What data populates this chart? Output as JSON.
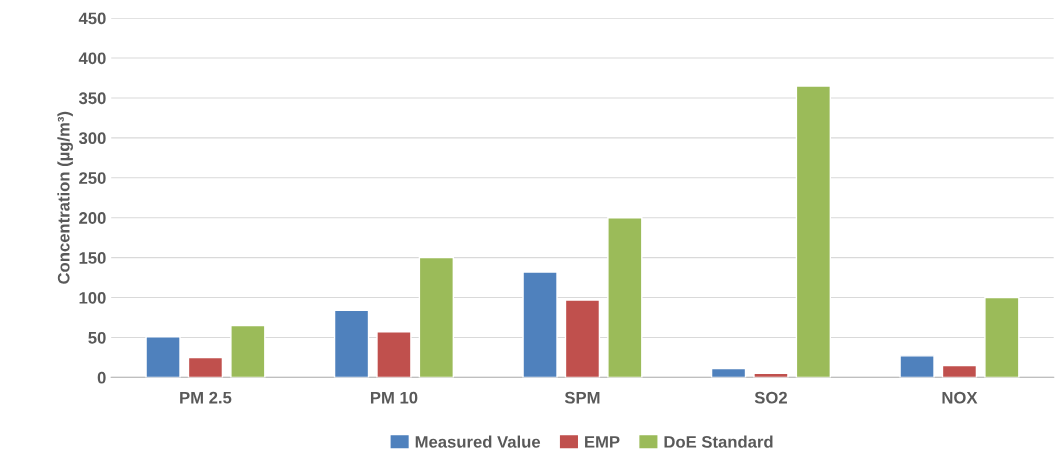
{
  "chart_data": {
    "type": "bar",
    "ylabel": "Concentration (µg/m³)",
    "categories": [
      "PM 2.5",
      "PM 10",
      "SPM",
      "SO2",
      "NOX"
    ],
    "series": [
      {
        "name": "Measured Value",
        "color": "#4f81bd",
        "values": [
          51,
          84,
          132,
          11,
          27
        ]
      },
      {
        "name": "EMP",
        "color": "#c0504d",
        "values": [
          25,
          57,
          97,
          5,
          15
        ]
      },
      {
        "name": "DoE Standard",
        "color": "#9bbb59",
        "values": [
          65,
          150,
          200,
          365,
          100
        ]
      }
    ],
    "ylim": [
      0,
      450
    ],
    "yticks": [
      0,
      50,
      100,
      150,
      200,
      250,
      300,
      350,
      400,
      450
    ],
    "grid": "y",
    "legend": "bottom"
  }
}
